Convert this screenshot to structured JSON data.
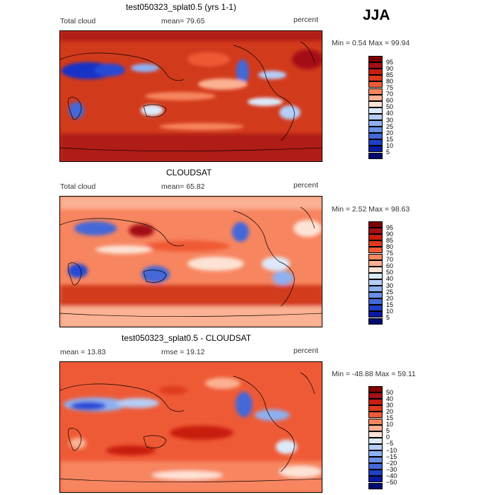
{
  "season": "JJA",
  "panels": [
    {
      "id": "model",
      "title": "test050323_splat0.5 (yrs 1-1)",
      "left_label": "Total cloud",
      "center_label": "mean=  79.65",
      "right_label": "percent",
      "minmax": "Min =   0.54 Max =  99.94",
      "colorbar": {
        "labels": [
          "95",
          "90",
          "85",
          "80",
          "75",
          "70",
          "60",
          "50",
          "40",
          "30",
          "25",
          "20",
          "15",
          "10",
          "5"
        ],
        "colors": [
          "#7f0000",
          "#a50f15",
          "#c81e10",
          "#de3a1f",
          "#ef5a36",
          "#f7855f",
          "#fbb193",
          "#fde3d6",
          "#ddeafb",
          "#b5cdf7",
          "#8fb0f0",
          "#6a8fe6",
          "#4468d8",
          "#1f3fc4",
          "#0a1aa0",
          "#000a70"
        ]
      }
    },
    {
      "id": "obs",
      "title": "CLOUDSAT",
      "left_label": "Total cloud",
      "center_label": "mean=  65.82",
      "right_label": "percent",
      "minmax": "Min =   2.52 Max =  98.63",
      "colorbar": {
        "labels": [
          "95",
          "90",
          "85",
          "80",
          "75",
          "70",
          "60",
          "50",
          "40",
          "30",
          "25",
          "20",
          "15",
          "10",
          "5"
        ],
        "colors": [
          "#7f0000",
          "#a50f15",
          "#c81e10",
          "#de3a1f",
          "#ef5a36",
          "#f7855f",
          "#fbb193",
          "#fde3d6",
          "#ddeafb",
          "#b5cdf7",
          "#8fb0f0",
          "#6a8fe6",
          "#4468d8",
          "#1f3fc4",
          "#0a1aa0",
          "#000a70"
        ]
      }
    },
    {
      "id": "diff",
      "title": "test050323_splat0.5 - CLOUDSAT",
      "left_label": "mean =   13.83",
      "center_label": "rmse =   19.12",
      "right_label": "percent",
      "minmax": "Min = -48.88 Max =  59.11",
      "colorbar": {
        "labels": [
          "50",
          "40",
          "30",
          "20",
          "15",
          "10",
          "5",
          "0",
          "−5",
          "−10",
          "−15",
          "−20",
          "−30",
          "−40",
          "−50"
        ],
        "colors": [
          "#7f0000",
          "#a50f15",
          "#c81e10",
          "#de3a1f",
          "#ef5a36",
          "#f7855f",
          "#fbb193",
          "#fde3d6",
          "#ddeafb",
          "#b5cdf7",
          "#8fb0f0",
          "#6a8fe6",
          "#4468d8",
          "#1f3fc4",
          "#0a1aa0",
          "#000a70"
        ]
      }
    }
  ]
}
